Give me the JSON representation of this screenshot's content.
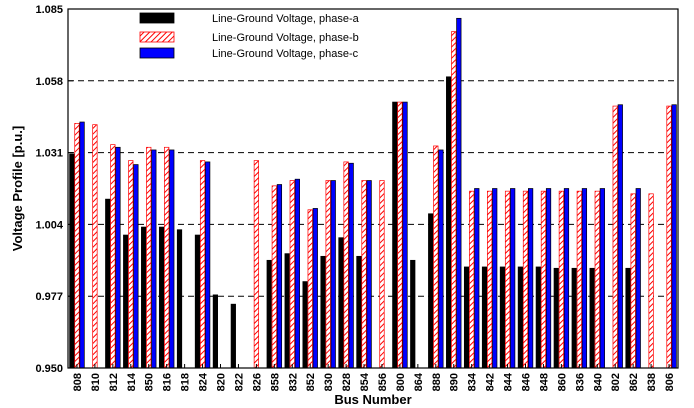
{
  "chart_data": {
    "type": "bar",
    "title": "",
    "xlabel": "Bus Number",
    "ylabel": "Voltage Profile [p.u.]",
    "ylim": [
      0.95,
      1.085
    ],
    "yticks": [
      "0.950",
      "0.977",
      "1.004",
      "1.031",
      "1.058",
      "1.085"
    ],
    "grid": "horizontal-dashed",
    "legend_position": "top-left",
    "categories": [
      "808",
      "810",
      "812",
      "814",
      "850",
      "816",
      "818",
      "824",
      "820",
      "822",
      "826",
      "858",
      "832",
      "852",
      "830",
      "828",
      "854",
      "856",
      "800",
      "864",
      "888",
      "890",
      "834",
      "842",
      "844",
      "846",
      "848",
      "860",
      "836",
      "840",
      "802",
      "862",
      "838",
      "806"
    ],
    "series": [
      {
        "name": "Line-Ground Voltage, phase-a",
        "color": "#000000",
        "pattern": "solid",
        "values": [
          1.0305,
          null,
          1.0135,
          1.0,
          1.003,
          1.003,
          1.002,
          1.0,
          0.9775,
          0.974,
          null,
          0.9905,
          0.993,
          0.9825,
          0.992,
          0.999,
          0.992,
          null,
          1.05,
          0.9905,
          1.008,
          1.0595,
          0.988,
          0.988,
          0.988,
          0.988,
          0.988,
          0.9875,
          0.9875,
          0.9875,
          null,
          0.9875,
          null,
          null
        ]
      },
      {
        "name": "Line-Ground Voltage, phase-b",
        "color": "#ff0000",
        "pattern": "hatched",
        "values": [
          1.042,
          1.0415,
          1.034,
          1.028,
          1.033,
          1.033,
          null,
          1.028,
          null,
          null,
          1.028,
          1.0185,
          1.0205,
          1.0095,
          1.0205,
          1.0275,
          1.0205,
          1.0205,
          1.05,
          null,
          1.0335,
          1.0765,
          1.0165,
          1.0165,
          1.0165,
          1.0165,
          1.0165,
          1.0165,
          1.0165,
          1.0165,
          1.0485,
          1.0155,
          1.0155,
          1.0485
        ]
      },
      {
        "name": "Line-Ground Voltage, phase-c",
        "color": "#0000ff",
        "pattern": "solid-outlined",
        "values": [
          1.0425,
          null,
          1.033,
          1.0265,
          1.032,
          1.032,
          null,
          1.0275,
          null,
          null,
          null,
          1.019,
          1.021,
          1.01,
          1.0205,
          1.027,
          1.0205,
          null,
          1.05,
          null,
          1.032,
          1.0815,
          1.0175,
          1.0175,
          1.0175,
          1.0175,
          1.0175,
          1.0175,
          1.0175,
          1.0175,
          1.049,
          1.0175,
          null,
          1.049
        ]
      }
    ]
  }
}
